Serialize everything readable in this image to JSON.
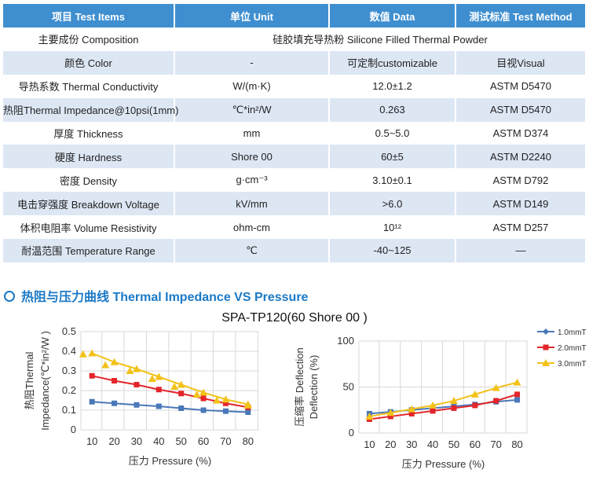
{
  "table": {
    "headers": [
      "项目  Test  Items",
      "单位  Unit",
      "数值 Data",
      "测试标准 Test  Method"
    ],
    "composition": {
      "label": "主要成份  Composition",
      "value": "硅胶填充导热粉 Silicone Filled Thermal Powder"
    },
    "rows": [
      {
        "item": "颜色 Color",
        "unit": "-",
        "data": "可定制customizable",
        "method": "目视Visual"
      },
      {
        "item": "导热系数  Thermal Conductivity",
        "unit": "W/(m·K)",
        "data": "12.0±1.2",
        "method": "ASTM D5470"
      },
      {
        "item": "热阻Thermal Impedance@10psi(1mm)",
        "unit": "℃*in²/W",
        "data": "0.263",
        "method": "ASTM D5470"
      },
      {
        "item": "厚度 Thickness",
        "unit": "mm",
        "data": "0.5~5.0",
        "method": "ASTM D374"
      },
      {
        "item": "硬度  Hardness",
        "unit": "Shore 00",
        "data": "60±5",
        "method": "ASTM D2240"
      },
      {
        "item": "密度 Density",
        "unit": "g·cm⁻³",
        "data": "3.10±0.1",
        "method": "ASTM D792"
      },
      {
        "item": "电击穿强度 Breakdown Voltage",
        "unit": "kV/mm",
        "data": ">6.0",
        "method": "ASTM D149"
      },
      {
        "item": "体积电阻率 Volume Resistivity",
        "unit": "ohm-cm",
        "data": "10¹²",
        "method": "ASTM D257"
      },
      {
        "item": "耐温范围 Temperature Range",
        "unit": "℃",
        "data": "-40~125",
        "method": "—"
      }
    ]
  },
  "section_title": "热阻与压力曲线 Thermal Impedance VS Pressure",
  "chart_title": "SPA-TP120(60 Shore 00 )",
  "colors": {
    "header_bg": "#3f8fd0",
    "row_alt": "#dde7f4",
    "accent": "#1b79c6",
    "s1": "#4a78b8",
    "s2": "#e3262a",
    "s3": "#f2c21b"
  },
  "chart_data": [
    {
      "type": "line",
      "xlabel": "压力 Pressure (%)",
      "ylabel": [
        "热阻Thermal",
        "Impedance(℃*in²/W )"
      ],
      "xticks": [
        10,
        20,
        30,
        40,
        50,
        60,
        70,
        80
      ],
      "yticks": [
        "0",
        "0.1",
        "0.2",
        "0.3",
        "0.4",
        "0.5"
      ],
      "xlim": [
        5,
        85
      ],
      "ylim": [
        0,
        0.5
      ],
      "grid": true,
      "x": [
        10,
        20,
        30,
        40,
        50,
        60,
        70,
        80
      ],
      "series": [
        {
          "name": "1.0mmT",
          "values": [
            0.143,
            0.135,
            0.127,
            0.12,
            0.11,
            0.1,
            0.095,
            0.09
          ]
        },
        {
          "name": "2.0mmT",
          "values": [
            0.275,
            0.25,
            0.23,
            0.205,
            0.185,
            0.16,
            0.135,
            0.115
          ]
        },
        {
          "name": "3.0mmT",
          "values": [
            0.39,
            0.345,
            0.31,
            0.27,
            0.23,
            0.19,
            0.155,
            0.13
          ]
        }
      ],
      "scatter": {
        "x": [
          6,
          16,
          27,
          37,
          47,
          57,
          66,
          80
        ],
        "values": [
          0.385,
          0.33,
          0.3,
          0.26,
          0.22,
          0.18,
          0.15,
          0.125
        ]
      }
    },
    {
      "type": "line",
      "xlabel": "压力 Pressure (%)",
      "ylabel": [
        "压缩率 Deflection",
        "Deflection (%)"
      ],
      "xticks": [
        10,
        20,
        30,
        40,
        50,
        60,
        70,
        80
      ],
      "yticks": [
        "0",
        "50",
        "100"
      ],
      "xlim": [
        5,
        85
      ],
      "ylim": [
        0,
        100
      ],
      "grid": true,
      "legend": "top-right",
      "x": [
        10,
        20,
        30,
        40,
        50,
        60,
        70,
        80
      ],
      "series": [
        {
          "name": "1.0mmT",
          "values": [
            21,
            23,
            25,
            27,
            29,
            31,
            34,
            36
          ]
        },
        {
          "name": "2.0mmT",
          "values": [
            15,
            18,
            21,
            24,
            27,
            30,
            35,
            42
          ]
        },
        {
          "name": "3.0mmT",
          "values": [
            18,
            22,
            26,
            30,
            35,
            42,
            49,
            55
          ]
        }
      ]
    }
  ]
}
